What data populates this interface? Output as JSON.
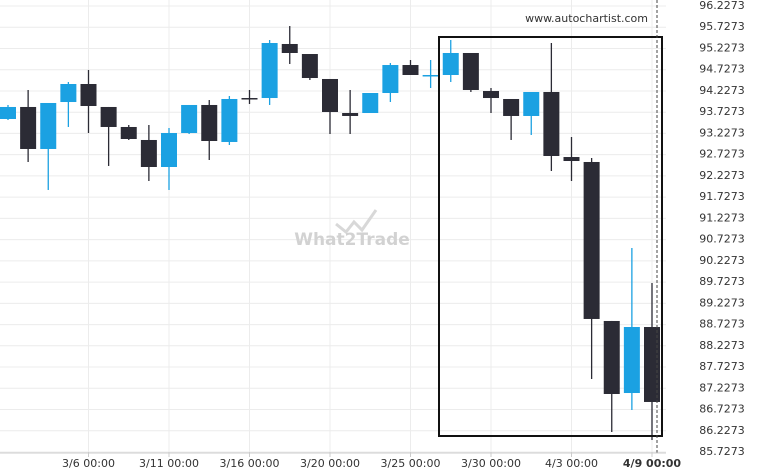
{
  "chart_data": {
    "type": "candlestick",
    "source": "www.autochartist.com",
    "watermark": "What2Trade",
    "categories": [
      null,
      null,
      null,
      null,
      "3/6 00:00",
      null,
      null,
      null,
      "3/11 00:00",
      null,
      null,
      null,
      "3/16 00:00",
      null,
      null,
      null,
      "3/20 00:00",
      null,
      null,
      null,
      "3/25 00:00",
      null,
      null,
      null,
      "3/30 00:00",
      null,
      null,
      null,
      "4/3 00:00",
      null,
      null,
      null,
      "4/9 00:00"
    ],
    "open": [
      93.567,
      93.85,
      92.861,
      93.967,
      94.391,
      93.85,
      93.379,
      93.073,
      92.437,
      93.237,
      93.897,
      93.026,
      94.061,
      94.061,
      95.333,
      95.097,
      94.509,
      93.708,
      93.708,
      94.179,
      94.838,
      94.603,
      94.603,
      95.121,
      94.226,
      94.038,
      93.638,
      94.203,
      92.672,
      92.555,
      88.812,
      87.116,
      88.67
    ],
    "high": [
      93.897,
      94.25,
      93.944,
      94.438,
      94.721,
      93.85,
      93.426,
      93.426,
      93.355,
      93.897,
      94.014,
      94.108,
      94.25,
      95.427,
      95.756,
      95.097,
      94.509,
      94.25,
      94.179,
      94.885,
      94.956,
      94.956,
      95.427,
      95.121,
      94.297,
      94.038,
      94.203,
      95.356,
      93.143,
      92.649,
      88.812,
      90.53,
      89.706
    ],
    "low": [
      93.543,
      92.555,
      91.896,
      93.379,
      93.237,
      92.461,
      93.073,
      92.107,
      91.896,
      93.214,
      92.602,
      92.955,
      93.92,
      93.897,
      94.862,
      94.485,
      93.214,
      93.214,
      93.708,
      93.967,
      94.603,
      94.297,
      94.438,
      94.203,
      93.708,
      93.073,
      93.19,
      92.343,
      92.107,
      87.446,
      86.198,
      86.716,
      86.01
    ],
    "close": [
      93.85,
      92.861,
      93.944,
      94.391,
      93.873,
      93.379,
      93.096,
      92.437,
      93.237,
      93.897,
      93.049,
      94.038,
      94.038,
      95.356,
      95.121,
      94.532,
      93.732,
      93.638,
      94.179,
      94.838,
      94.603,
      94.603,
      95.121,
      94.25,
      94.061,
      93.638,
      94.203,
      92.696,
      92.578,
      88.859,
      87.093,
      88.67,
      86.905
    ],
    "up_color": "#1ba1e2",
    "down_color": "#2b2b35",
    "ylim": [
      85.7273,
      96.2273
    ],
    "yticks": [
      85.7273,
      86.2273,
      86.7273,
      87.2273,
      87.7273,
      88.2273,
      88.7273,
      89.2273,
      89.7273,
      90.2273,
      90.7273,
      91.2273,
      91.7273,
      92.2273,
      92.7273,
      93.2273,
      93.7273,
      94.2273,
      94.7273,
      95.2273,
      95.7273,
      96.2273
    ],
    "grid": true
  }
}
